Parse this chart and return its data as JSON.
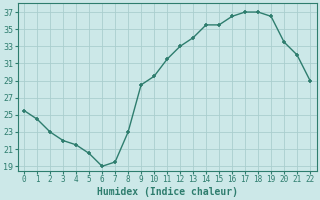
{
  "x": [
    0,
    1,
    2,
    3,
    4,
    5,
    6,
    7,
    8,
    9,
    10,
    11,
    12,
    13,
    14,
    15,
    16,
    17,
    18,
    19,
    20,
    21,
    22
  ],
  "y": [
    25.5,
    24.5,
    23.0,
    22.0,
    21.5,
    20.5,
    19.0,
    19.5,
    23.0,
    28.5,
    29.5,
    31.5,
    33.0,
    34.0,
    35.5,
    35.5,
    36.5,
    37.0,
    37.0,
    36.5,
    33.5,
    32.0,
    29.0
  ],
  "line_color": "#2e7d6e",
  "marker": "+",
  "bg_color": "#cce8e8",
  "grid_color": "#aacece",
  "xlabel": "Humidex (Indice chaleur)",
  "ylabel_ticks": [
    19,
    21,
    23,
    25,
    27,
    29,
    31,
    33,
    35,
    37
  ],
  "xlim": [
    -0.5,
    22.5
  ],
  "ylim": [
    18.5,
    38.0
  ]
}
